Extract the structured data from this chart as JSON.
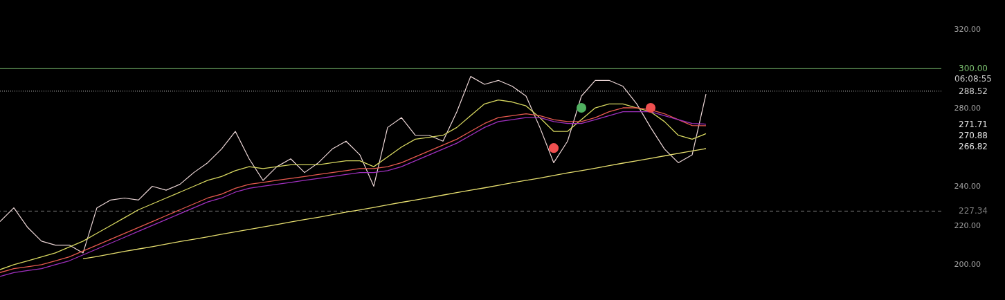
{
  "chart_data": {
    "type": "line",
    "categories": [
      null,
      null,
      null,
      null,
      null,
      null,
      null,
      null,
      null,
      null,
      null,
      null,
      null,
      null,
      null,
      null,
      null,
      null,
      null,
      null,
      null,
      null,
      null,
      null,
      null,
      null,
      null,
      null,
      null,
      null,
      null,
      null,
      null,
      null,
      null,
      null,
      null,
      null,
      null,
      null,
      null,
      null,
      null,
      null,
      null,
      null,
      null,
      null,
      null,
      null,
      null,
      null
    ],
    "ylim": [
      182,
      335
    ],
    "yticks": [
      {
        "value": 200,
        "label": "200.00"
      },
      {
        "value": 220,
        "label": "220.00"
      },
      {
        "value": 240,
        "label": "240.00"
      },
      {
        "value": 280,
        "label": "280.00"
      },
      {
        "value": 320,
        "label": "320.00"
      }
    ],
    "series": [
      {
        "color": "#eed8d8",
        "values": [
          222,
          229,
          219,
          212,
          210,
          210,
          206,
          229,
          233,
          234,
          233,
          240,
          238,
          241,
          247,
          252,
          259,
          268,
          254,
          243,
          250,
          254,
          247,
          252,
          259,
          263,
          256,
          240,
          270,
          275,
          266,
          266,
          263,
          278,
          296,
          292,
          294,
          291,
          286,
          270,
          252,
          263,
          286,
          294,
          294,
          291,
          282,
          270,
          259,
          252,
          256,
          287
        ]
      },
      {
        "color": "#d8d860",
        "values": [
          197.5,
          200,
          202,
          204,
          206,
          209,
          212,
          216,
          220,
          224,
          228,
          231,
          234,
          237,
          240,
          243,
          245,
          248,
          250,
          249,
          250,
          251,
          251,
          251,
          252,
          253,
          253,
          250,
          255,
          260,
          264,
          265,
          266,
          270,
          276,
          282,
          284,
          283,
          281,
          275,
          268,
          268,
          274,
          280,
          282,
          282,
          280,
          278,
          273,
          266,
          264,
          266.82
        ]
      },
      {
        "color": "#e85a50",
        "values": [
          196,
          198,
          199,
          200,
          202,
          204,
          207,
          210,
          213,
          216,
          219,
          222,
          225,
          228,
          231,
          234,
          236,
          239,
          241,
          242,
          243,
          244,
          245,
          246,
          247,
          248,
          249,
          249,
          250,
          252,
          255,
          258,
          261,
          264,
          268,
          272,
          275,
          276,
          277,
          276,
          274,
          273,
          273,
          275,
          278,
          280,
          280,
          279,
          277,
          274,
          271,
          270.88
        ]
      },
      {
        "color": "#a030c0",
        "values": [
          194,
          196,
          197,
          198,
          200,
          202,
          205,
          208,
          211,
          214,
          217,
          220,
          223,
          226,
          229,
          232,
          234,
          237,
          239,
          240,
          241,
          242,
          243,
          244,
          245,
          246,
          247,
          247,
          248,
          250,
          253,
          256,
          259,
          262,
          266,
          270,
          273,
          274,
          275,
          275,
          273,
          272,
          272,
          274,
          276,
          278,
          278,
          278,
          276,
          274,
          272,
          271.71
        ]
      },
      {
        "color": "#e8e070",
        "values": [
          null,
          null,
          null,
          null,
          null,
          null,
          203,
          204.2,
          205.5,
          206.8,
          208,
          209.2,
          210.5,
          211.8,
          213,
          214.2,
          215.5,
          216.8,
          218,
          219.2,
          220.5,
          221.8,
          223,
          224.2,
          225.5,
          226.8,
          228,
          229.2,
          230.5,
          231.8,
          233,
          234.2,
          235.5,
          236.8,
          238,
          239.2,
          240.5,
          241.8,
          243,
          244.2,
          245.5,
          246.8,
          248,
          249.2,
          250.5,
          251.8,
          253,
          254.2,
          255.5,
          256.8,
          258,
          259.2
        ]
      },
      {
        "type": "scatter",
        "colors": [
          null,
          null,
          null,
          null,
          null,
          null,
          null,
          null,
          null,
          null,
          null,
          null,
          null,
          null,
          null,
          null,
          null,
          null,
          null,
          null,
          null,
          null,
          null,
          null,
          null,
          null,
          null,
          null,
          null,
          null,
          null,
          null,
          null,
          null,
          null,
          null,
          null,
          null,
          null,
          null,
          "#f05050",
          null,
          "#50b060",
          null,
          null,
          null,
          null,
          "#f05050",
          null,
          null,
          null,
          null
        ],
        "values": [
          null,
          null,
          null,
          null,
          null,
          null,
          null,
          null,
          null,
          null,
          null,
          null,
          null,
          null,
          null,
          null,
          null,
          null,
          null,
          null,
          null,
          null,
          null,
          null,
          null,
          null,
          null,
          null,
          null,
          null,
          null,
          null,
          null,
          null,
          null,
          null,
          null,
          null,
          null,
          null,
          259.5,
          null,
          280,
          null,
          null,
          null,
          null,
          280,
          null,
          null,
          null,
          null
        ]
      }
    ],
    "ref_lines": [
      {
        "axis": "y",
        "value": 300,
        "label": "300.00",
        "color": "#7cc070",
        "line_style": "solid"
      },
      {
        "axis": "y",
        "value": 288.52,
        "label": "288.52",
        "color": "#c8c8c8",
        "line_style": "dotted"
      },
      {
        "axis": "y",
        "value": 227.34,
        "label": "227.34",
        "color": "#808080",
        "line_style": "dashed"
      }
    ],
    "annotations": [
      "06:08:55",
      "271.71",
      "270.88",
      "266.82"
    ]
  }
}
